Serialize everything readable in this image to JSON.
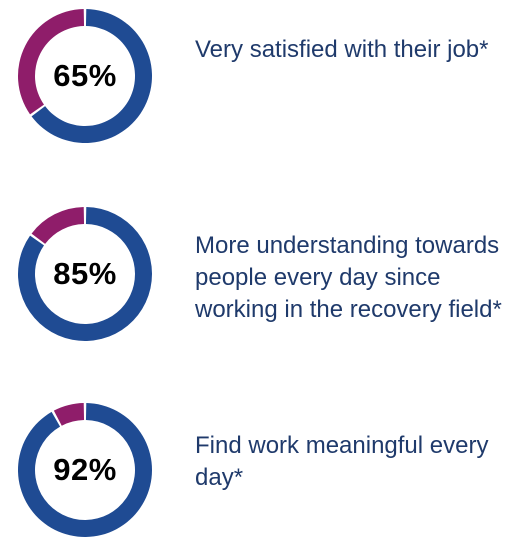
{
  "chart_data": [
    {
      "type": "pie",
      "variant": "donut",
      "value_label": "65%",
      "values": [
        65,
        35
      ],
      "colors": [
        "#1f4b93",
        "#8f1d6a"
      ],
      "description": "Very satisfied with their job*"
    },
    {
      "type": "pie",
      "variant": "donut",
      "value_label": "85%",
      "values": [
        85,
        15
      ],
      "colors": [
        "#1f4b93",
        "#8f1d6a"
      ],
      "description": "More understanding towards people every day since working in the recovery field*"
    },
    {
      "type": "pie",
      "variant": "donut",
      "value_label": "92%",
      "values": [
        92,
        8
      ],
      "colors": [
        "#1f4b93",
        "#8f1d6a"
      ],
      "description": "Find work meaningful every day*"
    }
  ],
  "colors": {
    "primary": "#1f4b93",
    "secondary": "#8f1d6a",
    "text": "#1f3a6b"
  }
}
